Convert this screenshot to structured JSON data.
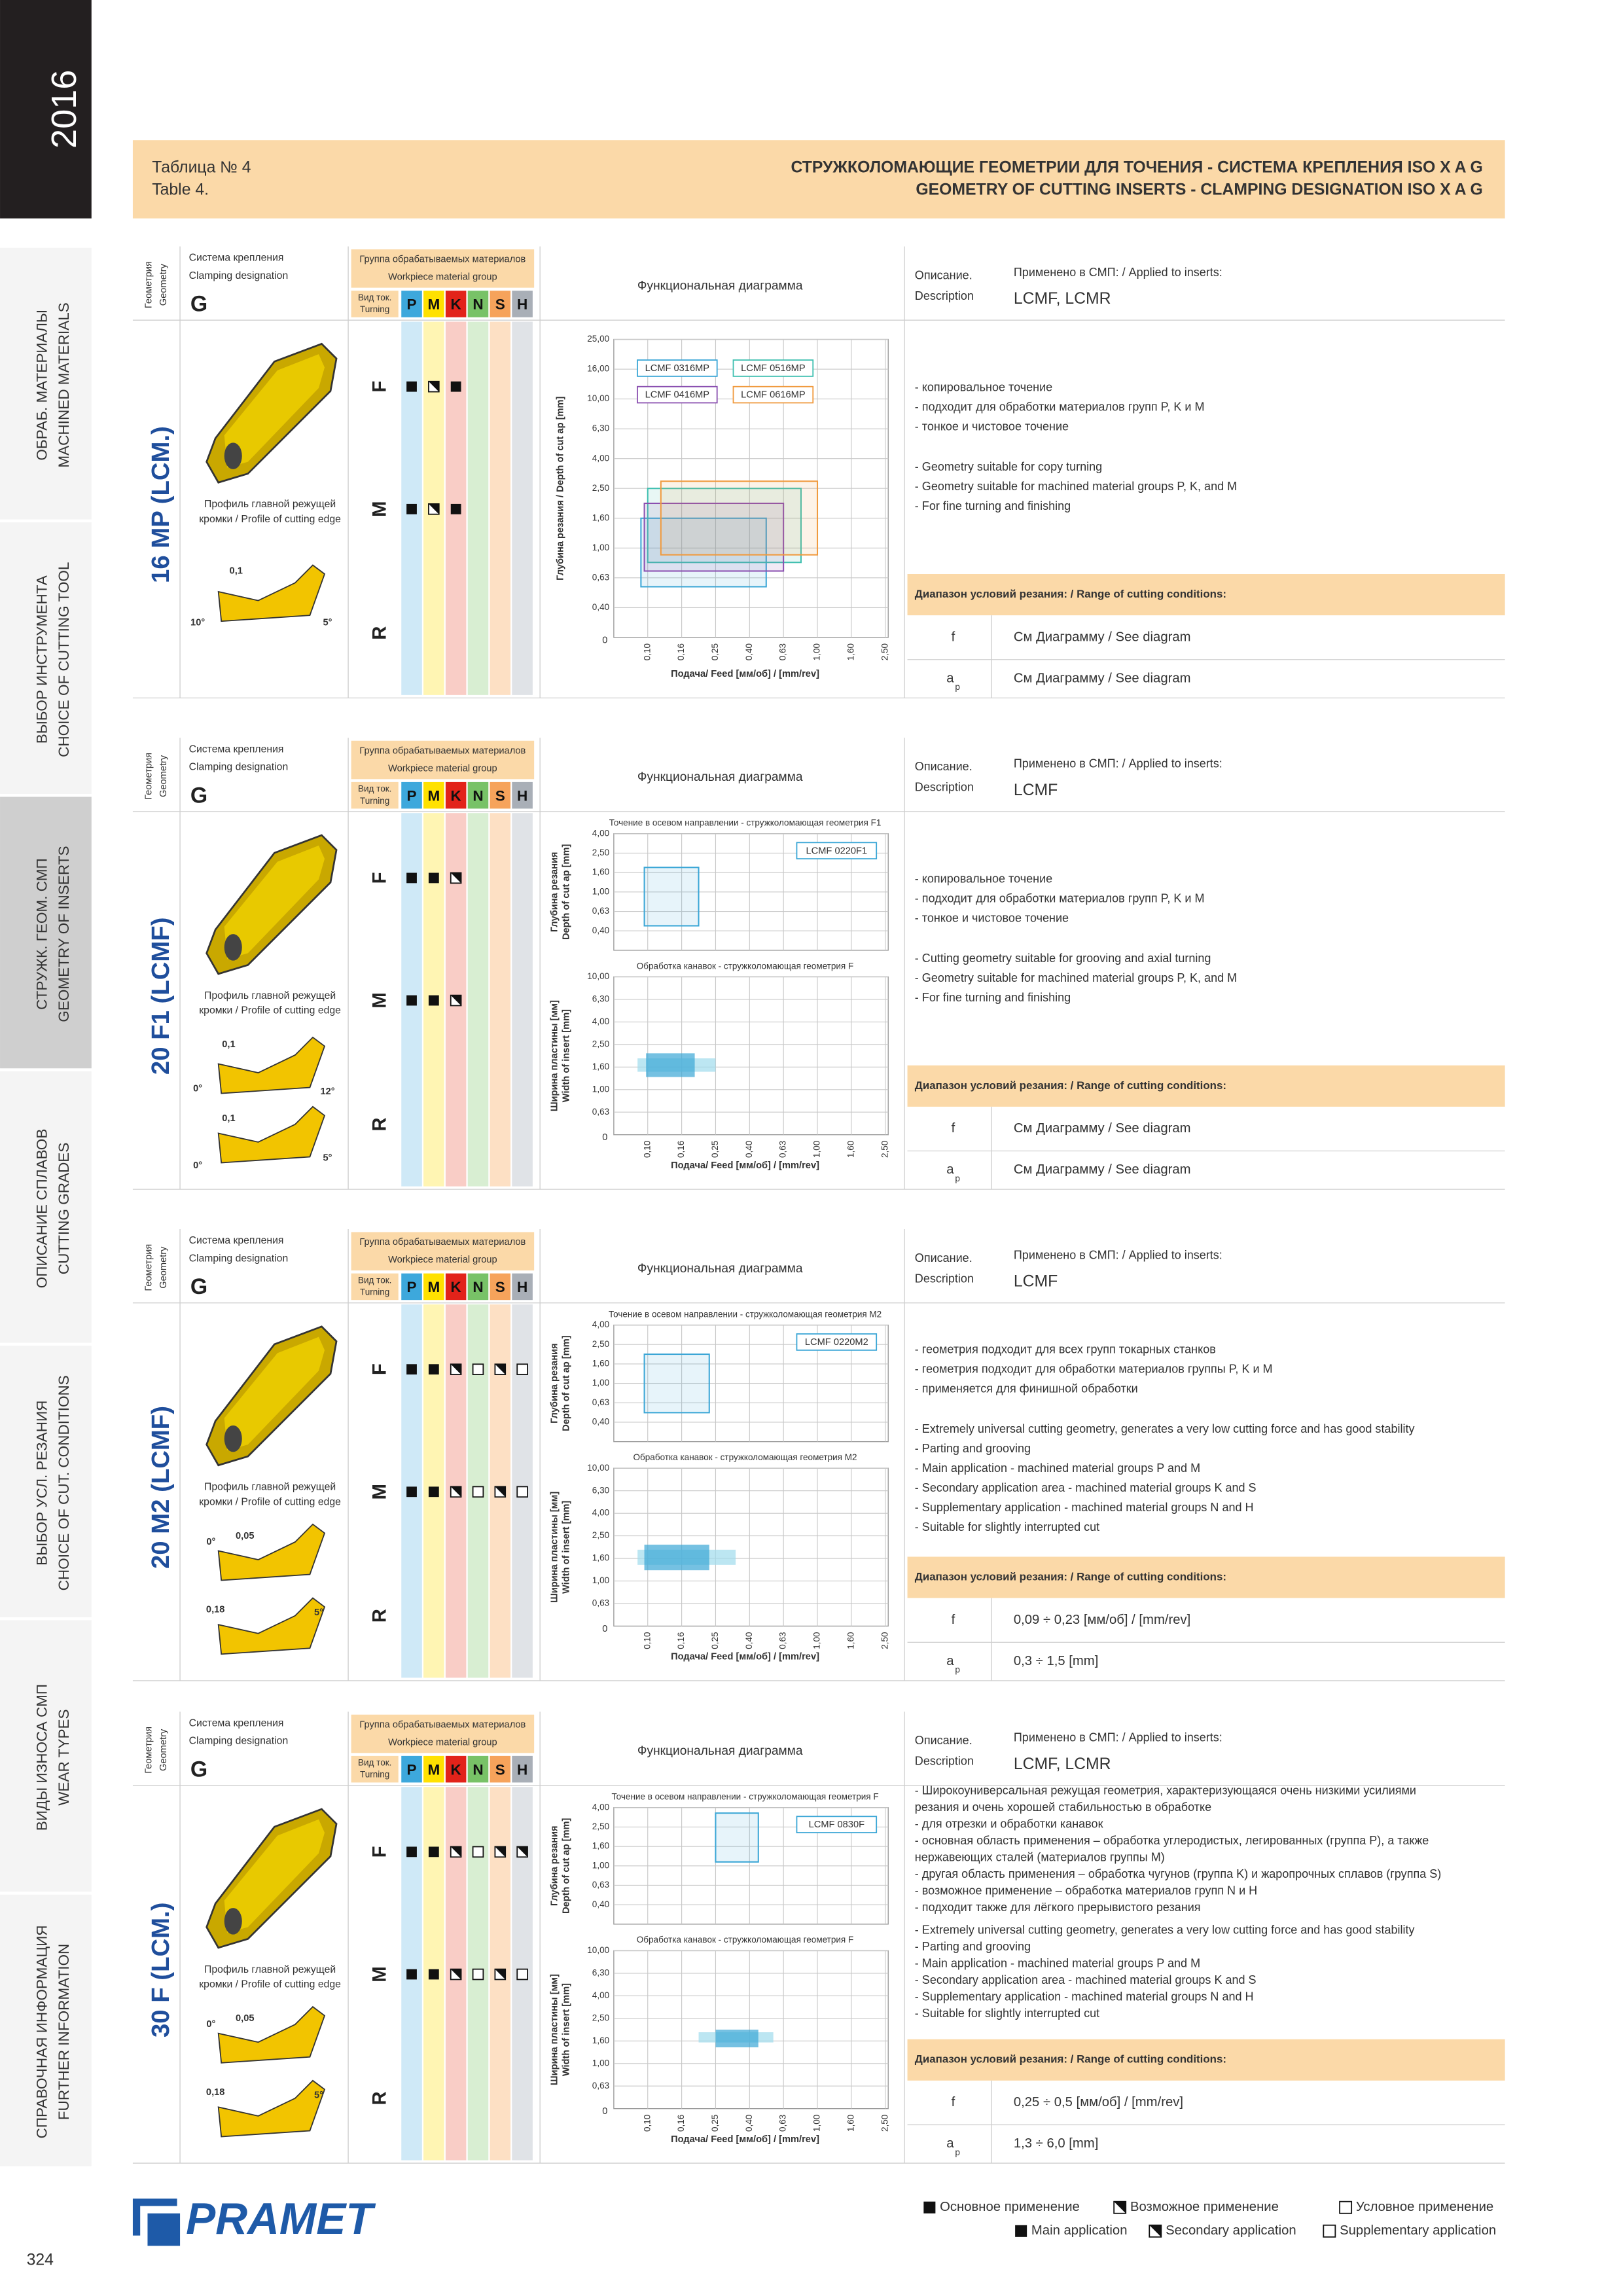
{
  "sidebar": {
    "year": "2016",
    "page": "324",
    "active": 2,
    "tabs": [
      [
        "ОБРАБ. МАТЕРИАЛЫ",
        "MACHINED MATERIALS"
      ],
      [
        "ВЫБОР ИНСТРУМЕНТА",
        "CHOICE OF CUTTING TOOL"
      ],
      [
        "СТРУЖК. ГЕОМ. СМП",
        "GEOMETRY OF INSERTS"
      ],
      [
        "ОПИСАНИЕ СПЛАВОВ",
        "CUTTING GRADES"
      ],
      [
        "ВЫБОР УСЛ. РЕЗАНИЯ",
        "CHOICE OF CUT. CONDITIONS"
      ],
      [
        "ВИДЫ ИЗНОСА СМП",
        "WEAR TYPES"
      ],
      [
        "СПРАВОЧНАЯ ИНФОРМАЦИЯ",
        "FURTHER INFORMATION"
      ]
    ]
  },
  "header": {
    "table_ru": "Таблица № 4",
    "table_en": "Table 4.",
    "title_ru": "СТРУЖКОЛОМАЮЩИЕ ГЕОМЕТРИИ ДЛЯ ТОЧЕНИЯ - СИСТЕМА КРЕПЛЕНИЯ ISO X A G",
    "title_en": "GEOMETRY OF CUTTING INSERTS - CLAMPING DESIGNATION ISO X A G"
  },
  "labels": {
    "geometry": [
      "Геометрия",
      "Geometry"
    ],
    "clamping": [
      "Система крепления",
      "Clamping designation"
    ],
    "material_group": [
      "Группа обрабатываемых материалов",
      "Workpiece material group"
    ],
    "turning": [
      "Вид ток.",
      "Turning"
    ],
    "groups": [
      "P",
      "M",
      "K",
      "N",
      "S",
      "H"
    ],
    "group_colors": [
      "#3da8dc",
      "#ffe100",
      "#e2231a",
      "#78c267",
      "#f6a35b",
      "#a9afb7"
    ],
    "group_tints": [
      "#cfe9f7",
      "#fff5b3",
      "#f9cdc6",
      "#d8eed2",
      "#fde0c4",
      "#e0e3e7"
    ],
    "profile": [
      "Профиль главной режущей",
      "кромки / Profile of cutting edge"
    ],
    "diagram": "Функциональная диаграмма",
    "description": [
      "Описание.",
      "Description"
    ],
    "applied": "Применено в СМП: / Applied to inserts:",
    "range": "Диапазон условий резания: / Range of cutting conditions:",
    "f": "f",
    "ap": [
      "a",
      "p"
    ]
  },
  "diagram_axis": {
    "x_label": "Подача/ Feed [мм/об] / [mm/rev]",
    "xlim": [
      0,
      2.5
    ],
    "xticks": [
      {
        "value": 0,
        "label": "0"
      },
      {
        "value": 0.1,
        "label": "0,10"
      },
      {
        "value": 0.16,
        "label": "0,16"
      },
      {
        "value": 0.25,
        "label": "0,25"
      },
      {
        "value": 0.4,
        "label": "0,40"
      },
      {
        "value": 0.63,
        "label": "0,63"
      },
      {
        "value": 1,
        "label": "1,00"
      },
      {
        "value": 1.6,
        "label": "1,60"
      },
      {
        "value": 2.5,
        "label": "2,50"
      }
    ]
  },
  "blocks": [
    {
      "name": "16 MP (LCM.)",
      "geometry": "G",
      "applied": "LCMF, LCMR",
      "materials": [
        {
          "row": "F",
          "marks": [
            "f",
            "h",
            "f",
            null,
            null,
            null
          ]
        },
        {
          "row": "M",
          "marks": [
            "f",
            "h",
            "f",
            null,
            null,
            null
          ]
        },
        {
          "row": "R",
          "marks": [
            null,
            null,
            null,
            null,
            null,
            null
          ]
        }
      ],
      "profile_labels": [
        "0,1",
        "10°",
        "5°"
      ],
      "charts": [
        {
          "type": "range",
          "y_label": [
            "Глубина резания / Depth of cut ap [mm]"
          ],
          "ylim": [
            0,
            25
          ],
          "yticks": [
            {
              "value": 0.4,
              "label": "0,40"
            },
            {
              "value": 0.63,
              "label": "0,63"
            },
            {
              "value": 1,
              "label": "1,00"
            },
            {
              "value": 1.6,
              "label": "1,60"
            },
            {
              "value": 2.5,
              "label": "2,50"
            },
            {
              "value": 4,
              "label": "4,00"
            },
            {
              "value": 6.3,
              "label": "6,30"
            },
            {
              "value": 10,
              "label": "10,00"
            },
            {
              "value": 16,
              "label": "16,00"
            },
            {
              "value": 25,
              "label": "25,00"
            }
          ],
          "rects": [
            {
              "name": "LCMF 0316MP",
              "color": "#3aa6d6",
              "x": [
                0.08,
                0.5
              ],
              "y": [
                0.55,
                1.6
              ]
            },
            {
              "name": "LCMF 0516MP",
              "color": "#3fbfb0",
              "x": [
                0.1,
                0.8
              ],
              "y": [
                0.8,
                2.5
              ]
            },
            {
              "name": "LCMF 0416MP",
              "color": "#8a4fb0",
              "x": [
                0.09,
                0.63
              ],
              "y": [
                0.7,
                2
              ]
            },
            {
              "name": "LCMF 0616MP",
              "color": "#f09a3e",
              "x": [
                0.12,
                1
              ],
              "y": [
                0.9,
                2.8
              ]
            }
          ]
        }
      ],
      "desc_ru": [
        "- копировальное точение",
        "- подходит для обработки материалов групп P, K и M",
        "- тонкое и чистовое точение"
      ],
      "desc_en": [
        "- Geometry suitable for copy turning",
        "- Geometry suitable for machined material groups P, K, and M",
        "- For fine turning and finishing"
      ],
      "f": "См Диаграмму / See diagram",
      "ap": "См Диаграмму / See diagram"
    },
    {
      "name": "20 F1 (LCMF)",
      "geometry": "G",
      "applied": "LCMF",
      "materials": [
        {
          "row": "F",
          "marks": [
            "f",
            "f",
            "h",
            null,
            null,
            null
          ]
        },
        {
          "row": "M",
          "marks": [
            "f",
            "f",
            "h",
            null,
            null,
            null
          ]
        },
        {
          "row": "R",
          "marks": [
            null,
            null,
            null,
            null,
            null,
            null
          ]
        }
      ],
      "profile_labels": [
        "0,1",
        "0°",
        "12°",
        "0,1",
        "0°",
        "5°"
      ],
      "charts": [
        {
          "type": "range",
          "title": "Точение в осевом направлении - стружколомающая геометрия F1",
          "y_label": [
            "Глубина резания",
            "Depth of cut ap [mm]"
          ],
          "ylim": [
            0,
            4
          ],
          "yticks": [
            {
              "value": 0.4,
              "label": "0,40"
            },
            {
              "value": 0.63,
              "label": "0,63"
            },
            {
              "value": 1,
              "label": "1,00"
            },
            {
              "value": 1.6,
              "label": "1,60"
            },
            {
              "value": 2.5,
              "label": "2,50"
            },
            {
              "value": 4,
              "label": "4,00"
            }
          ],
          "rects": [
            {
              "name": "LCMF 0220F1",
              "color": "#3aa6d6",
              "x": [
                0.09,
                0.2
              ],
              "y": [
                0.45,
                1.8
              ]
            }
          ]
        },
        {
          "type": "range",
          "title": "Обработка канавок - стружколомающая геометрия F",
          "y_label": [
            "Ширина пластины [мм]",
            "Width of insert [mm]"
          ],
          "ylim": [
            0,
            10
          ],
          "yticks": [
            {
              "value": 0.63,
              "label": "0,63"
            },
            {
              "value": 1,
              "label": "1,00"
            },
            {
              "value": 1.6,
              "label": "1,60"
            },
            {
              "value": 2.5,
              "label": "2,50"
            },
            {
              "value": 4,
              "label": "4,00"
            },
            {
              "value": 6.3,
              "label": "6,30"
            },
            {
              "value": 10,
              "label": "10,00"
            }
          ],
          "rects": [
            {
              "color": "#9fdcec",
              "x": [
                0.07,
                0.25
              ],
              "y": [
                1.45,
                1.9
              ]
            },
            {
              "color": "#3aa6d6",
              "x": [
                0.095,
                0.19
              ],
              "y": [
                1.3,
                2.1
              ]
            }
          ]
        }
      ],
      "desc_ru": [
        "- копировальное точение",
        "- подходит для обработки материалов групп P, K и M",
        "- тонкое и чистовое точение"
      ],
      "desc_en": [
        "- Cutting geometry suitable for grooving and axial turning",
        "- Geometry suitable for machined material groups P, K, and M",
        "- For fine turning and finishing"
      ],
      "f": "См Диаграмму / See diagram",
      "ap": "См Диаграмму / See diagram"
    },
    {
      "name": "20 M2 (LCMF)",
      "geometry": "G",
      "applied": "LCMF",
      "materials": [
        {
          "row": "F",
          "marks": [
            "f",
            "f",
            "h",
            "e",
            "h",
            "e"
          ]
        },
        {
          "row": "M",
          "marks": [
            "f",
            "f",
            "h",
            "e",
            "h",
            "e"
          ]
        },
        {
          "row": "R",
          "marks": [
            null,
            null,
            null,
            null,
            null,
            null
          ]
        }
      ],
      "profile_labels": [
        "0°",
        "0,05",
        "0,18",
        "5°"
      ],
      "charts": [
        {
          "type": "range",
          "title": "Точение в осевом направлении - стружколомающая геометрия M2",
          "y_label": [
            "Глубина резания",
            "Depth of cut ap [mm]"
          ],
          "ylim": [
            0,
            4
          ],
          "yticks": [
            {
              "value": 0.4,
              "label": "0,40"
            },
            {
              "value": 0.63,
              "label": "0,63"
            },
            {
              "value": 1,
              "label": "1,00"
            },
            {
              "value": 1.6,
              "label": "1,60"
            },
            {
              "value": 2.5,
              "label": "2,50"
            },
            {
              "value": 4,
              "label": "4,00"
            }
          ],
          "rects": [
            {
              "name": "LCMF 0220M2",
              "color": "#3aa6d6",
              "x": [
                0.09,
                0.23
              ],
              "y": [
                0.5,
                2
              ]
            }
          ]
        },
        {
          "type": "range",
          "title": "Обработка канавок - стружколомающая геометрия M2",
          "y_label": [
            "Ширина пластины [мм]",
            "Width of insert [mm]"
          ],
          "ylim": [
            0,
            10
          ],
          "yticks": [
            {
              "value": 0.63,
              "label": "0,63"
            },
            {
              "value": 1,
              "label": "1,00"
            },
            {
              "value": 1.6,
              "label": "1,60"
            },
            {
              "value": 2.5,
              "label": "2,50"
            },
            {
              "value": 4,
              "label": "4,00"
            },
            {
              "value": 6.3,
              "label": "6,30"
            },
            {
              "value": 10,
              "label": "10,00"
            }
          ],
          "rects": [
            {
              "color": "#9fdcec",
              "x": [
                0.07,
                0.33
              ],
              "y": [
                1.4,
                1.9
              ]
            },
            {
              "color": "#3aa6d6",
              "x": [
                0.09,
                0.23
              ],
              "y": [
                1.25,
                2.1
              ]
            }
          ]
        }
      ],
      "desc_ru": [
        "- геометрия подходит для всех групп токарных станков",
        "- геометрия подходит для обработки материалов группы P, K и M",
        "- применяется для финишной обработки"
      ],
      "desc_en": [
        "- Extremely universal cutting geometry, generates a very low cutting force and has good stability",
        "- Parting and grooving",
        "- Main application - machined material groups P and M",
        "- Secondary application area - machined material groups K and S",
        "- Supplementary application - machined material groups N and H",
        "- Suitable for slightly interrupted cut"
      ],
      "f": "0,09 ÷ 0,23 [мм/об] / [mm/rev]",
      "ap": "0,3 ÷ 1,5 [mm]"
    },
    {
      "name": "30 F (LCM.)",
      "geometry": "G",
      "applied": "LCMF, LCMR",
      "materials": [
        {
          "row": "F",
          "marks": [
            "f",
            "f",
            "h",
            "e",
            "h",
            "h"
          ]
        },
        {
          "row": "M",
          "marks": [
            "f",
            "f",
            "h",
            "e",
            "h",
            "e"
          ]
        },
        {
          "row": "R",
          "marks": [
            null,
            null,
            null,
            null,
            null,
            null
          ]
        }
      ],
      "profile_labels": [
        "0°",
        "0,05",
        "0,18",
        "5°"
      ],
      "charts": [
        {
          "type": "range",
          "title": "Точение в осевом направлении - стружколомающая геометрия F",
          "y_label": [
            "Глубина резания",
            "Depth of cut ap [mm]"
          ],
          "ylim": [
            0,
            4
          ],
          "yticks": [
            {
              "value": 0.4,
              "label": "0,40"
            },
            {
              "value": 0.63,
              "label": "0,63"
            },
            {
              "value": 1,
              "label": "1,00"
            },
            {
              "value": 1.6,
              "label": "1,60"
            },
            {
              "value": 2.5,
              "label": "2,50"
            },
            {
              "value": 4,
              "label": "4,00"
            }
          ],
          "rects": [
            {
              "name": "LCMF 0830F",
              "color": "#3aa6d6",
              "x": [
                0.25,
                0.45
              ],
              "y": [
                1.1,
                3.5
              ]
            }
          ]
        },
        {
          "type": "range",
          "title": "Обработка канавок - стружколомающая геометрия F",
          "y_label": [
            "Ширина пластины [мм]",
            "Width of insert [mm]"
          ],
          "ylim": [
            0,
            10
          ],
          "yticks": [
            {
              "value": 0.63,
              "label": "0,63"
            },
            {
              "value": 1,
              "label": "1,00"
            },
            {
              "value": 1.6,
              "label": "1,60"
            },
            {
              "value": 2.5,
              "label": "2,50"
            },
            {
              "value": 4,
              "label": "4,00"
            },
            {
              "value": 6.3,
              "label": "6,30"
            },
            {
              "value": 10,
              "label": "10,00"
            }
          ],
          "rects": [
            {
              "color": "#9fdcec",
              "x": [
                0.2,
                0.55
              ],
              "y": [
                1.55,
                1.9
              ]
            },
            {
              "color": "#3aa6d6",
              "x": [
                0.25,
                0.45
              ],
              "y": [
                1.4,
                2
              ]
            }
          ]
        }
      ],
      "desc_ru": [
        "- Широкоуниверсальная режущая геометрия, характеризующаяся очень низкими усилиями",
        "резания и очень хорошей стабильностью в обработке",
        "- для отрезки и обработки канавок",
        "- основная область применения – обработка углеродистых, легированных (группа P), а также",
        "нержавеющих сталей (материалов группы M)",
        "- другая область применения – обработка чугунов (группа K) и жаропрочных сплавов (группа S)",
        "- возможное применение – обработка материалов групп N и H",
        "- подходит также для лёгкого прерывистого резания"
      ],
      "desc_en": [
        "- Extremely universal cutting geometry, generates a very low cutting force and has good stability",
        "- Parting and grooving",
        "- Main application - machined material groups P and M",
        "- Secondary application area - machined material groups K and S",
        "- Supplementary application - machined material groups N and H",
        "- Suitable for slightly interrupted cut"
      ],
      "f": "0,25 ÷ 0,5 [мм/об] / [mm/rev]",
      "ap": "1,3 ÷ 6,0 [mm]"
    }
  ],
  "legend": [
    {
      "symbol": "f",
      "ru": "Основное применение",
      "en": "Main application"
    },
    {
      "symbol": "h",
      "ru": "Возможное применение",
      "en": "Secondary application"
    },
    {
      "symbol": "e",
      "ru": "Условное применение",
      "en": "Supplementary application"
    }
  ],
  "logo": "PRAMET"
}
